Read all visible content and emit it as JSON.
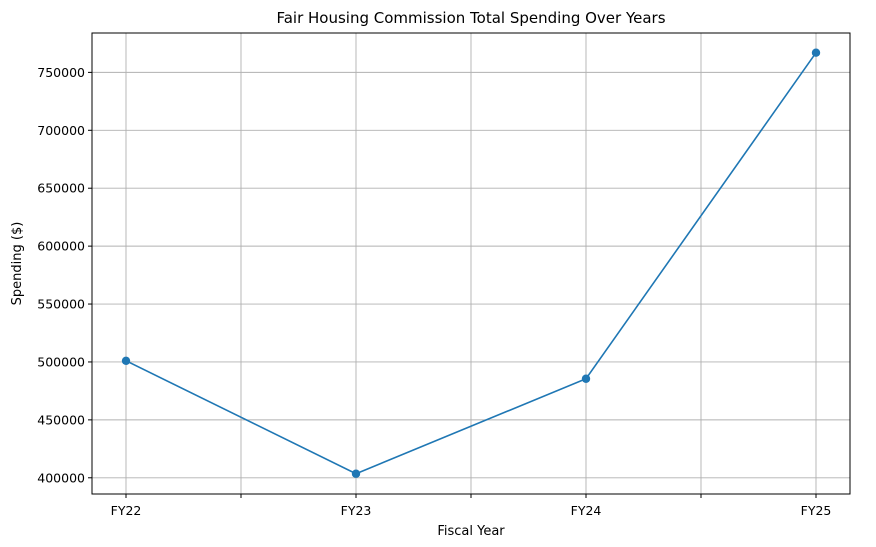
{
  "chart_data": {
    "type": "line",
    "title": "Fair Housing Commission Total Spending Over Years",
    "xlabel": "Fiscal Year",
    "ylabel": "Spending ($)",
    "categories": [
      "FY22",
      "FY23",
      "FY24",
      "FY25"
    ],
    "series": [
      {
        "values": [
          501000,
          403500,
          485500,
          767000
        ],
        "color": "#1f77b4",
        "marker": "circle"
      }
    ],
    "ylim": [
      386000,
      784000
    ],
    "yticks": [
      400000,
      450000,
      500000,
      550000,
      600000,
      650000,
      700000,
      750000
    ],
    "minor_x_ticks": true,
    "grid": true,
    "legend": "none"
  }
}
